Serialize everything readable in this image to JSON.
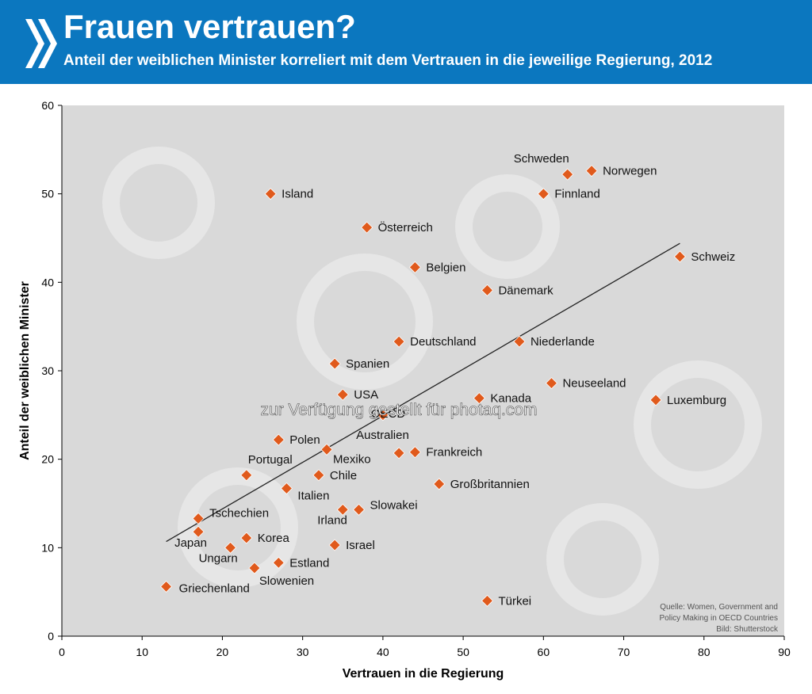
{
  "header": {
    "title": "Frauen vertrauen?",
    "subtitle": "Anteil der weiblichen Minister korreliert mit dem Vertrauen in die jeweilige Regierung, 2012"
  },
  "colors": {
    "header_bg": "#0b77bf",
    "plot_bg": "#d9d9d9",
    "marker": "#e05a1c",
    "trendline": "#222222"
  },
  "chart_data": {
    "type": "scatter",
    "xlabel": "Vertrauen in die Regierung",
    "ylabel": "Anteil der weiblichen Minister",
    "xlim": [
      0,
      90
    ],
    "ylim": [
      0,
      60
    ],
    "xticks": [
      0,
      10,
      20,
      30,
      40,
      50,
      60,
      70,
      80,
      90
    ],
    "yticks": [
      0,
      10,
      20,
      30,
      40,
      50,
      60
    ],
    "grid": false,
    "trendline": [
      [
        13,
        10.7
      ],
      [
        77,
        44.4
      ]
    ],
    "points": [
      {
        "label": "Island",
        "x": 26,
        "y": 50.0
      },
      {
        "label": "Schweden",
        "x": 63,
        "y": 52.2
      },
      {
        "label": "Norwegen",
        "x": 66,
        "y": 52.6
      },
      {
        "label": "Finnland",
        "x": 60,
        "y": 50.0
      },
      {
        "label": "Österreich",
        "x": 38,
        "y": 46.2
      },
      {
        "label": "Schweiz",
        "x": 77,
        "y": 42.9
      },
      {
        "label": "Belgien",
        "x": 44,
        "y": 41.7
      },
      {
        "label": "Dänemark",
        "x": 53,
        "y": 39.1
      },
      {
        "label": "Deutschland",
        "x": 42,
        "y": 33.3
      },
      {
        "label": "Niederlande",
        "x": 57,
        "y": 33.3
      },
      {
        "label": "Spanien",
        "x": 34,
        "y": 30.8
      },
      {
        "label": "Neuseeland",
        "x": 61,
        "y": 28.6
      },
      {
        "label": "USA",
        "x": 35,
        "y": 27.3
      },
      {
        "label": "Kanada",
        "x": 52,
        "y": 26.9
      },
      {
        "label": "Luxemburg",
        "x": 74,
        "y": 26.7
      },
      {
        "label": "OECD",
        "x": 40,
        "y": 25.0
      },
      {
        "label": "Polen",
        "x": 27,
        "y": 22.2
      },
      {
        "label": "Mexiko",
        "x": 33,
        "y": 21.1
      },
      {
        "label": "Australien",
        "x": 42,
        "y": 20.7
      },
      {
        "label": "Frankreich",
        "x": 44,
        "y": 20.8
      },
      {
        "label": "Portugal",
        "x": 23,
        "y": 18.2
      },
      {
        "label": "Chile",
        "x": 32,
        "y": 18.2
      },
      {
        "label": "Italien",
        "x": 28,
        "y": 16.7
      },
      {
        "label": "Großbritannien",
        "x": 47,
        "y": 17.2
      },
      {
        "label": "Irland",
        "x": 35,
        "y": 14.3
      },
      {
        "label": "Slowakei",
        "x": 37,
        "y": 14.3
      },
      {
        "label": "Tschechien",
        "x": 17,
        "y": 13.3
      },
      {
        "label": "Japan",
        "x": 17,
        "y": 11.8
      },
      {
        "label": "Korea",
        "x": 23,
        "y": 11.1
      },
      {
        "label": "Ungarn",
        "x": 21,
        "y": 10.0
      },
      {
        "label": "Israel",
        "x": 34,
        "y": 10.3
      },
      {
        "label": "Estland",
        "x": 27,
        "y": 8.3
      },
      {
        "label": "Slowenien",
        "x": 24,
        "y": 7.7
      },
      {
        "label": "Griechenland",
        "x": 13,
        "y": 5.6
      },
      {
        "label": "Türkei",
        "x": 53,
        "y": 4.0
      }
    ],
    "source": [
      "Quelle: Women, Government and",
      "Policy Making in OECD Countries",
      "Bild: Shutterstock"
    ]
  },
  "watermark": "zur Verfügung gestellt für photaq.com"
}
